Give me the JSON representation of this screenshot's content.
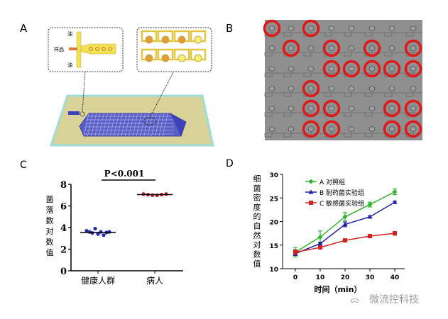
{
  "panels": {
    "A": {
      "label": "A",
      "inset_left": {
        "oil_top": "油",
        "sample": "样品",
        "oil_bottom": "油"
      },
      "colors": {
        "chip_base": "#d9d39a",
        "channel": "#f2e055",
        "array": "#5a5fc8",
        "droplet": "#e39b3c"
      }
    },
    "B": {
      "label": "B",
      "grid_rows": 6,
      "grid_cols": 8,
      "positive_wells": [
        [
          0,
          2
        ],
        [
          1,
          3,
          5,
          7
        ],
        [
          3,
          4,
          5,
          6,
          7
        ],
        [
          2
        ],
        [
          2,
          3,
          6,
          7
        ],
        [
          2,
          3,
          6,
          7
        ]
      ],
      "colors": {
        "background": "#8f8f8f",
        "marker": "#e01818"
      }
    }
  },
  "chart_data": [
    {
      "panel": "C",
      "type": "scatter",
      "title": "P<0.001",
      "ylabel": "菌落数对数值",
      "xlabel": "",
      "categories": [
        "健康人群",
        "病人"
      ],
      "ylim": [
        0,
        8
      ],
      "yticks": [
        0,
        2,
        4,
        6,
        8
      ],
      "series": [
        {
          "category": "健康人群",
          "values": [
            3.7,
            3.6,
            3.5,
            3.9,
            3.4,
            3.6,
            3.3,
            3.55,
            3.6
          ],
          "mean": 3.55,
          "color": "#1f2ea8"
        },
        {
          "category": "病人",
          "values": [
            7.1,
            7.05,
            7.0,
            6.98,
            7.05,
            7.1
          ],
          "mean": 7.05,
          "color": "#b8202a"
        }
      ]
    },
    {
      "panel": "D",
      "type": "line",
      "ylabel": "细菌密度的自然对数值",
      "xlabel": "时间（min）",
      "x": [
        0,
        10,
        20,
        30,
        40
      ],
      "xlim": [
        0,
        40
      ],
      "ylim": [
        10,
        30
      ],
      "yticks": [
        10,
        15,
        20,
        25,
        30
      ],
      "legend": "top-left",
      "series": [
        {
          "name": "A  对照组",
          "values": [
            13.5,
            16.7,
            21.0,
            23.6,
            26.3
          ],
          "errors": [
            1.0,
            1.3,
            0.9,
            0.5,
            0.6
          ],
          "color": "#2fb52f",
          "marker": "diamond"
        },
        {
          "name": "B  耐药菌实验组",
          "values": [
            13.2,
            15.3,
            19.4,
            21.0,
            24.1
          ],
          "errors": [
            0.4,
            0.3,
            0.5,
            0.2,
            0.2
          ],
          "color": "#1f1fa8",
          "marker": "triangle"
        },
        {
          "name": "C  敏感菌实验组",
          "values": [
            13.5,
            14.5,
            16.0,
            16.9,
            17.5
          ],
          "errors": [
            0.5,
            0.2,
            0.2,
            0.2,
            0.4
          ],
          "color": "#d42020",
          "marker": "square"
        }
      ]
    }
  ],
  "labels": {
    "C": "C",
    "D": "D"
  },
  "watermark": "微流控科技"
}
